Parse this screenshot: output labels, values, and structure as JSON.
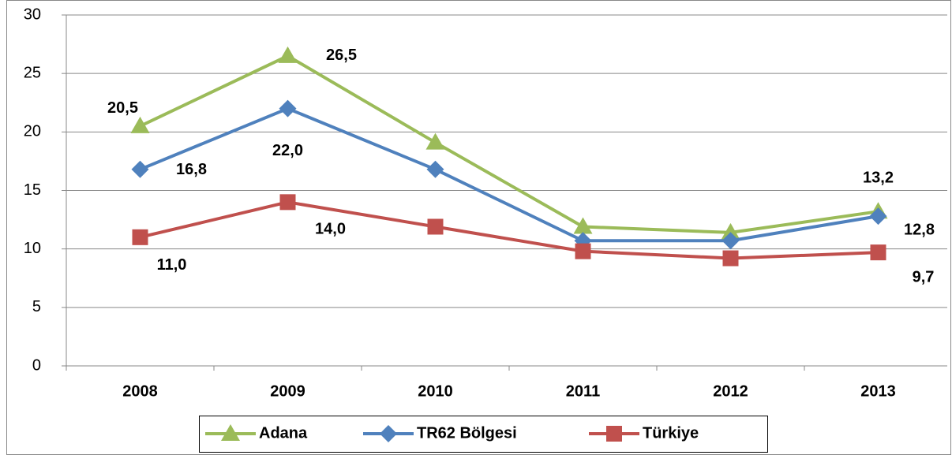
{
  "chart_data": {
    "type": "line",
    "categories": [
      "2008",
      "2009",
      "2010",
      "2011",
      "2012",
      "2013"
    ],
    "series": [
      {
        "name": "Adana",
        "color": "#9bbb59",
        "marker": "triangle",
        "values": [
          20.5,
          26.5,
          19.1,
          11.9,
          11.4,
          13.2
        ],
        "value_labels": [
          "20,5",
          "26,5",
          null,
          null,
          null,
          "13,2"
        ]
      },
      {
        "name": "TR62 Bölgesi",
        "color": "#4f81bd",
        "marker": "diamond",
        "values": [
          16.8,
          22.0,
          16.8,
          10.7,
          10.7,
          12.8
        ],
        "value_labels": [
          "16,8",
          "22,0",
          null,
          null,
          null,
          "12,8"
        ]
      },
      {
        "name": "Türkiye",
        "color": "#c0504d",
        "marker": "square",
        "values": [
          11.0,
          14.0,
          11.9,
          9.8,
          9.2,
          9.7
        ],
        "value_labels": [
          "11,0",
          "14,0",
          null,
          null,
          null,
          "9,7"
        ]
      }
    ],
    "ylim": [
      0,
      30
    ],
    "yticks": [
      0,
      5,
      10,
      15,
      20,
      25,
      30
    ],
    "grid": true,
    "legend": "bottom"
  }
}
